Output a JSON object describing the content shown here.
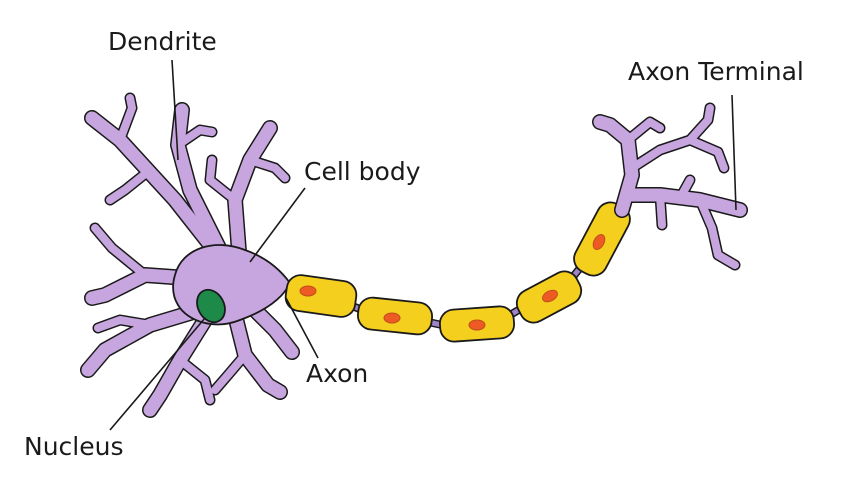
{
  "diagram": {
    "labels": {
      "dendrite": "Dendrite",
      "cell_body": "Cell body",
      "axon_terminal": "Axon Terminal",
      "axon": "Axon",
      "nucleus": "Nucleus"
    },
    "colors": {
      "neuron": "#c7a6df",
      "outline": "#1a1a1a",
      "nucleus": "#1e8a4a",
      "myelin": "#f5cf1e",
      "schwann_nucleus": "#ee5a24",
      "node": "#9f84c9"
    }
  }
}
